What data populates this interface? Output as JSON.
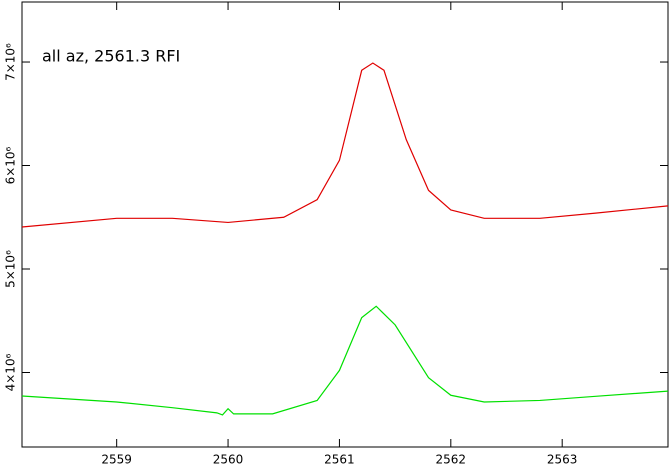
{
  "chart_data": {
    "type": "line",
    "annotation": "all az, 2561.3 RFI",
    "annotation_color": "#00e000",
    "xlim": [
      2558.15,
      2563.95
    ],
    "xticks": [
      2559,
      2560,
      2561,
      2562,
      2563
    ],
    "ylim": [
      3280000,
      7580000
    ],
    "yticks": [
      {
        "value": 4000000,
        "label": "4×10⁶"
      },
      {
        "value": 5000000,
        "label": "5×10⁶"
      },
      {
        "value": 6000000,
        "label": "6×10⁶"
      },
      {
        "value": 7000000,
        "label": "7×10⁶"
      }
    ],
    "series": [
      {
        "color": "#e00000",
        "x": [
          2558.15,
          2559,
          2559.5,
          2560,
          2560.5,
          2560.8,
          2561,
          2561.2,
          2561.3,
          2561.4,
          2561.6,
          2561.8,
          2562,
          2562.3,
          2562.8,
          2563.3,
          2563.95
        ],
        "values": [
          5406000,
          5490000,
          5490000,
          5450000,
          5500000,
          5670000,
          6050000,
          6920000,
          6990000,
          6920000,
          6250000,
          5760000,
          5570000,
          5490000,
          5490000,
          5540000,
          5610000
        ]
      },
      {
        "color": "#00e000",
        "x": [
          2558.15,
          2559,
          2559.5,
          2559.9,
          2559.95,
          2560,
          2560.05,
          2560.4,
          2560.8,
          2561,
          2561.2,
          2561.33,
          2561.5,
          2561.8,
          2562,
          2562.3,
          2562.8,
          2563.3,
          2563.95
        ],
        "values": [
          3773000,
          3715000,
          3660000,
          3610000,
          3590000,
          3650000,
          3600000,
          3600000,
          3730000,
          4020000,
          4530000,
          4640000,
          4460000,
          3950000,
          3780000,
          3715000,
          3730000,
          3770000,
          3820000
        ]
      }
    ]
  }
}
